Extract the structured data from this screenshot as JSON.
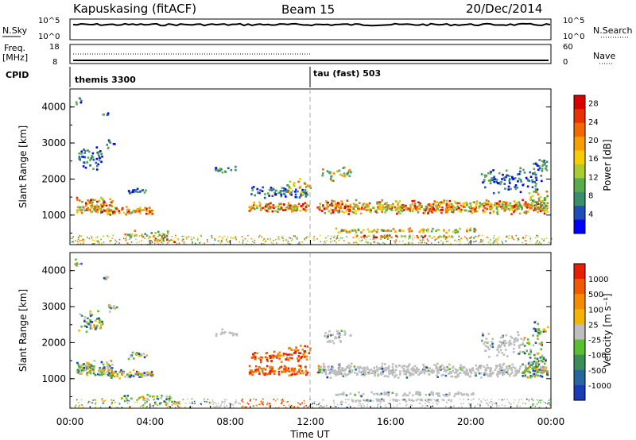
{
  "header": {
    "radar": "Kapuskasing (fitACF)",
    "beam": "Beam 15",
    "date": "20/Dec/2014"
  },
  "panel_labels": {
    "nsky": "N.Sky",
    "nsearch": "N.Search",
    "freq_line1": "Freq.",
    "freq_line2": "[MHz]",
    "nave": "Nave",
    "cpid": "CPID",
    "nsky_ticks": [
      "10^5",
      "10^0"
    ],
    "nsearch_ticks": [
      "10^5",
      "10^0"
    ],
    "freq_ticks": [
      "18",
      "8"
    ],
    "nave_ticks": [
      "60",
      "0"
    ]
  },
  "cpid_modes": [
    {
      "label": "themis 3300",
      "start_hour": 0
    },
    {
      "label": "tau (fast) 503",
      "start_hour": 12
    }
  ],
  "chart_data": [
    {
      "type": "heatmap",
      "name": "power",
      "ylabel": "Slant Range [km]",
      "xlabel": "Time UT",
      "xlim": [
        0,
        24
      ],
      "ylim": [
        180,
        4500
      ],
      "xticks": [
        "00:00",
        "04:00",
        "08:00",
        "12:00",
        "16:00",
        "20:00",
        "00:00"
      ],
      "yticks": [
        "1000",
        "2000",
        "3000",
        "4000"
      ],
      "ytick_values": [
        1000,
        2000,
        3000,
        4000
      ],
      "colorbar_label": "Power [dB]",
      "colorbar_ticks": [
        "4",
        "8",
        "12",
        "16",
        "20",
        "24",
        "28"
      ],
      "colorbar_range": [
        0,
        30
      ]
    },
    {
      "type": "heatmap",
      "name": "velocity",
      "ylabel": "Slant Range [km]",
      "xlabel": "Time UT",
      "xlim": [
        0,
        24
      ],
      "ylim": [
        180,
        4500
      ],
      "xticks": [
        "00:00",
        "04:00",
        "08:00",
        "12:00",
        "16:00",
        "20:00",
        "00:00"
      ],
      "yticks": [
        "1000",
        "2000",
        "3000",
        "4000"
      ],
      "ytick_values": [
        1000,
        2000,
        3000,
        4000
      ],
      "colorbar_label": "Velocity [m s⁻¹]",
      "colorbar_ticks": [
        "1000",
        "500",
        "100",
        "25",
        "-25",
        "-100",
        "-500",
        "-1000"
      ],
      "ground_scatter_color": "#bebebe"
    }
  ],
  "time_label": "Time UT",
  "colors": {
    "power_scale": [
      "#0000ff",
      "#1f4fb4",
      "#3c8c6e",
      "#5aaa50",
      "#aacc30",
      "#f5cc00",
      "#f5a000",
      "#f06a00",
      "#e83200",
      "#d80000"
    ],
    "velocity_scale": [
      "#1a3cb4",
      "#2864a0",
      "#3c8c5a",
      "#5abe32",
      "#bebebe",
      "#f5b400",
      "#f58c00",
      "#f05a00",
      "#e81e00"
    ]
  }
}
